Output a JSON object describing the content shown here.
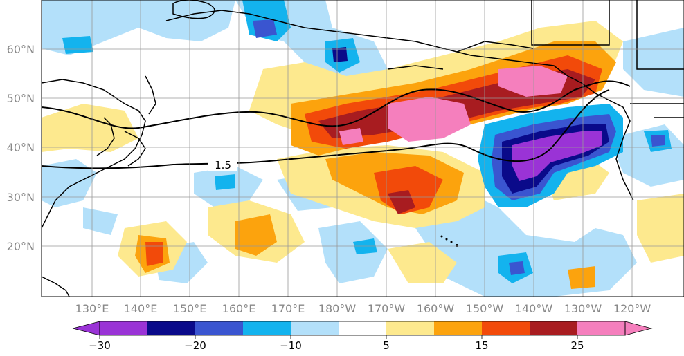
{
  "map": {
    "lat_labels": [
      "60°N",
      "50°N",
      "40°N",
      "30°N",
      "20°N"
    ],
    "lon_labels": [
      "130°E",
      "140°E",
      "150°E",
      "160°E",
      "170°E",
      "180°W",
      "170°W",
      "160°W",
      "150°W",
      "140°W",
      "130°W",
      "120°W"
    ],
    "contour_label": "1.5",
    "colors": {
      "purple": "#9a33d6",
      "navy": "#0a0a8a",
      "blue": "#3a55d0",
      "cyan": "#13b3ee",
      "light_blue": "#b3e0fa",
      "white": "#ffffff",
      "light_yellow": "#fde98e",
      "orange": "#fca30d",
      "red_orange": "#f24a0a",
      "dark_red": "#a81c20",
      "pink": "#f57fbd",
      "coast": "#000000",
      "grid": "#999999",
      "tick_text": "#888888"
    }
  },
  "colorbar": {
    "tick_labels": [
      "−30",
      "−20",
      "−10",
      "5",
      "15",
      "25"
    ],
    "colors": [
      "#9a33d6",
      "#0a0a8a",
      "#3a55d0",
      "#13b3ee",
      "#b3e0fa",
      "#ffffff",
      "#fde98e",
      "#fca30d",
      "#f24a0a",
      "#a81c20",
      "#f57fbd"
    ]
  }
}
